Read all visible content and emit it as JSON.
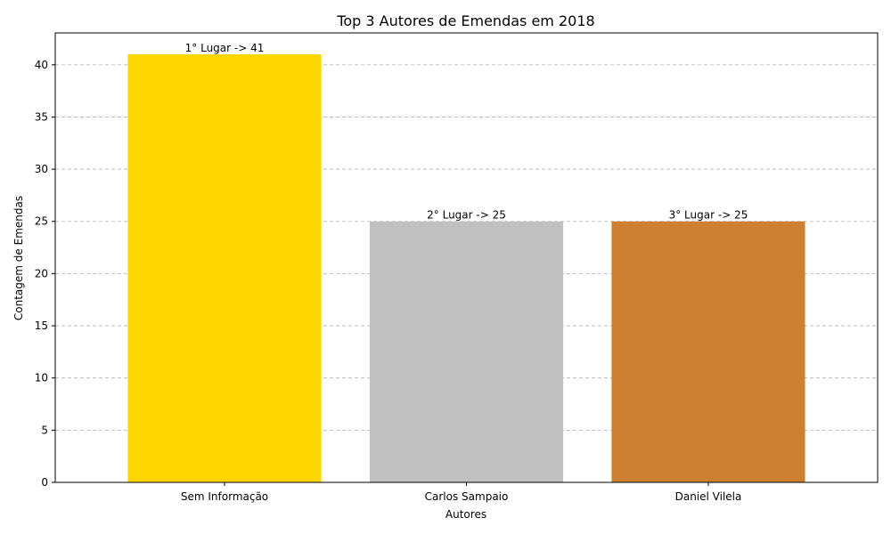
{
  "chart_data": {
    "type": "bar",
    "title": "Top 3 Autores de Emendas em 2018",
    "xlabel": "Autores",
    "ylabel": "Contagem de Emendas",
    "categories": [
      "Sem Informação",
      "Carlos Sampaio",
      "Daniel Vilela"
    ],
    "values": [
      41,
      25,
      25
    ],
    "bar_labels": [
      "1° Lugar -> 41",
      "2° Lugar -> 25",
      "3° Lugar -> 25"
    ],
    "colors": [
      "#ffd700",
      "#c0c0c0",
      "#cd7f32"
    ],
    "ylim": [
      0,
      43.05
    ],
    "yticks": [
      0,
      5,
      10,
      15,
      20,
      25,
      30,
      35,
      40
    ],
    "grid": "y-dashed",
    "legend": "none"
  }
}
